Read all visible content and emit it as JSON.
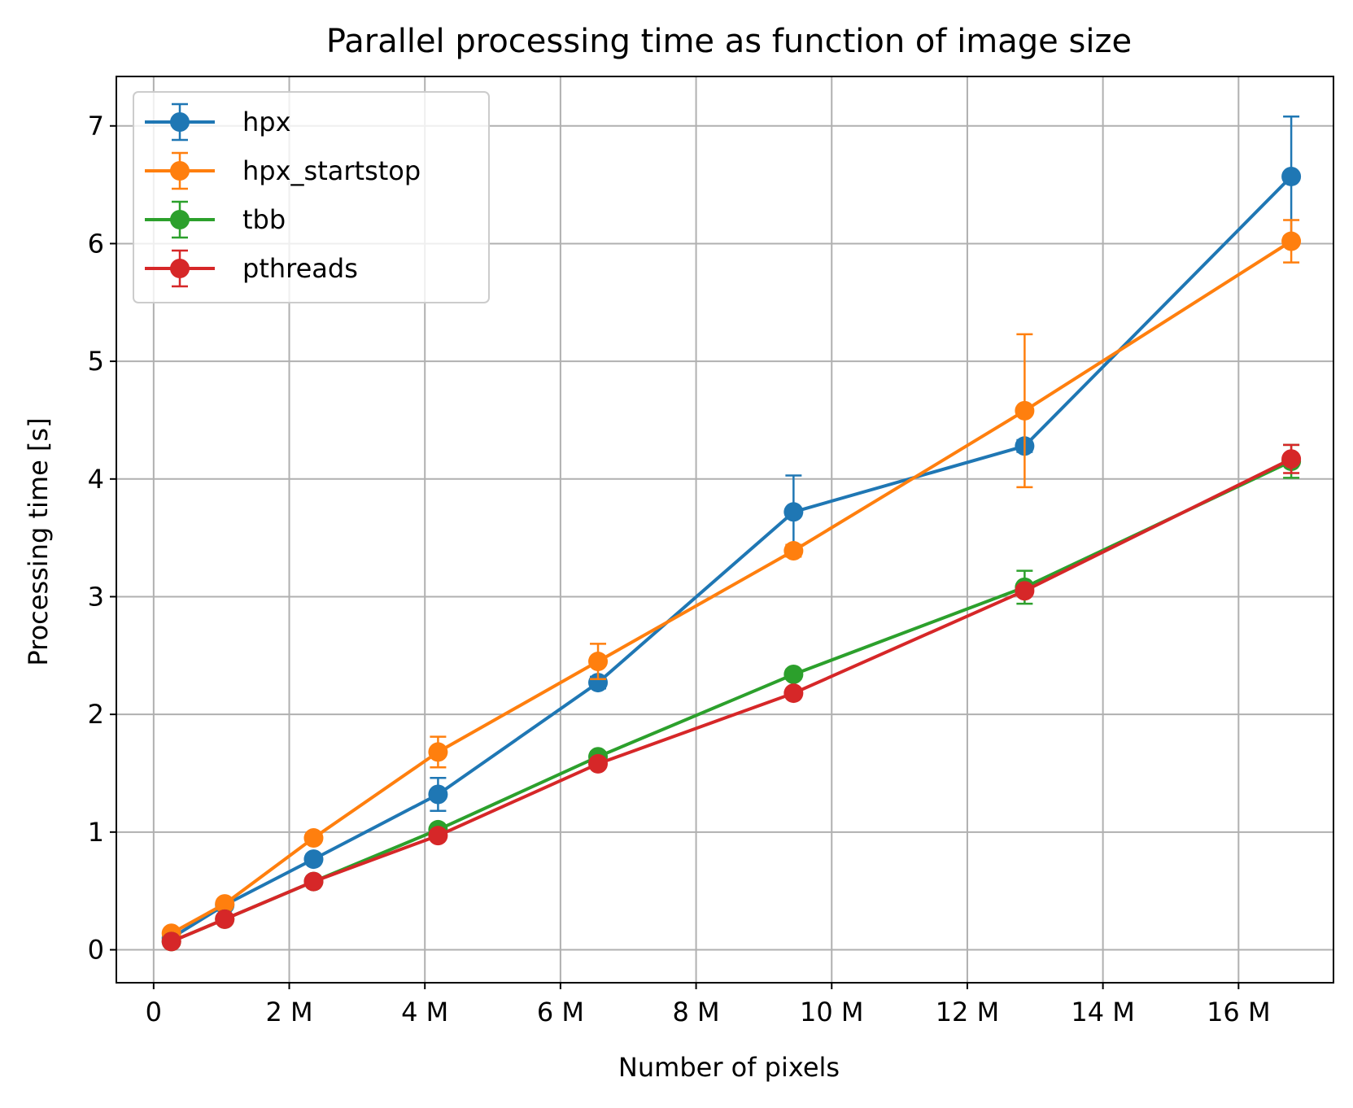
{
  "chart_data": {
    "type": "line",
    "title": "Parallel processing time as function of image size",
    "xlabel": "Number of pixels",
    "ylabel": "Processing time [s]",
    "xlim": [
      -550000,
      17400000
    ],
    "ylim": [
      -0.28,
      7.42
    ],
    "xticks": [
      {
        "value": 0,
        "label": "0"
      },
      {
        "value": 2000000,
        "label": "2 M"
      },
      {
        "value": 4000000,
        "label": "4 M"
      },
      {
        "value": 6000000,
        "label": "6 M"
      },
      {
        "value": 8000000,
        "label": "8 M"
      },
      {
        "value": 10000000,
        "label": "10 M"
      },
      {
        "value": 12000000,
        "label": "12 M"
      },
      {
        "value": 14000000,
        "label": "14 M"
      },
      {
        "value": 16000000,
        "label": "16 M"
      }
    ],
    "yticks": [
      {
        "value": 0,
        "label": "0"
      },
      {
        "value": 1,
        "label": "1"
      },
      {
        "value": 2,
        "label": "2"
      },
      {
        "value": 3,
        "label": "3"
      },
      {
        "value": 4,
        "label": "4"
      },
      {
        "value": 5,
        "label": "5"
      },
      {
        "value": 6,
        "label": "6"
      },
      {
        "value": 7,
        "label": "7"
      }
    ],
    "grid": true,
    "legend_position": "upper-left",
    "x": [
      262144,
      1048576,
      2359296,
      4194304,
      6553600,
      9437184,
      12845056,
      16777216
    ],
    "series": [
      {
        "name": "hpx",
        "color": "#1f77b4",
        "values": [
          0.1,
          0.38,
          0.77,
          1.32,
          2.27,
          3.72,
          4.28,
          6.57
        ],
        "errors": [
          0.02,
          0.03,
          0.04,
          0.14,
          0.05,
          0.31,
          0.05,
          0.51
        ]
      },
      {
        "name": "hpx_startstop",
        "color": "#ff7f0e",
        "values": [
          0.14,
          0.39,
          0.95,
          1.68,
          2.45,
          3.39,
          4.58,
          6.02
        ],
        "errors": [
          0.02,
          0.03,
          0.04,
          0.13,
          0.15,
          0.05,
          0.65,
          0.18
        ]
      },
      {
        "name": "tbb",
        "color": "#2ca02c",
        "values": [
          0.07,
          0.26,
          0.58,
          1.02,
          1.64,
          2.34,
          3.08,
          4.15
        ],
        "errors": [
          0.01,
          0.02,
          0.03,
          0.03,
          0.04,
          0.04,
          0.14,
          0.14
        ]
      },
      {
        "name": "pthreads",
        "color": "#d62728",
        "values": [
          0.07,
          0.26,
          0.58,
          0.97,
          1.58,
          2.18,
          3.05,
          4.17
        ],
        "errors": [
          0.01,
          0.02,
          0.03,
          0.03,
          0.03,
          0.03,
          0.04,
          0.12
        ]
      }
    ]
  }
}
